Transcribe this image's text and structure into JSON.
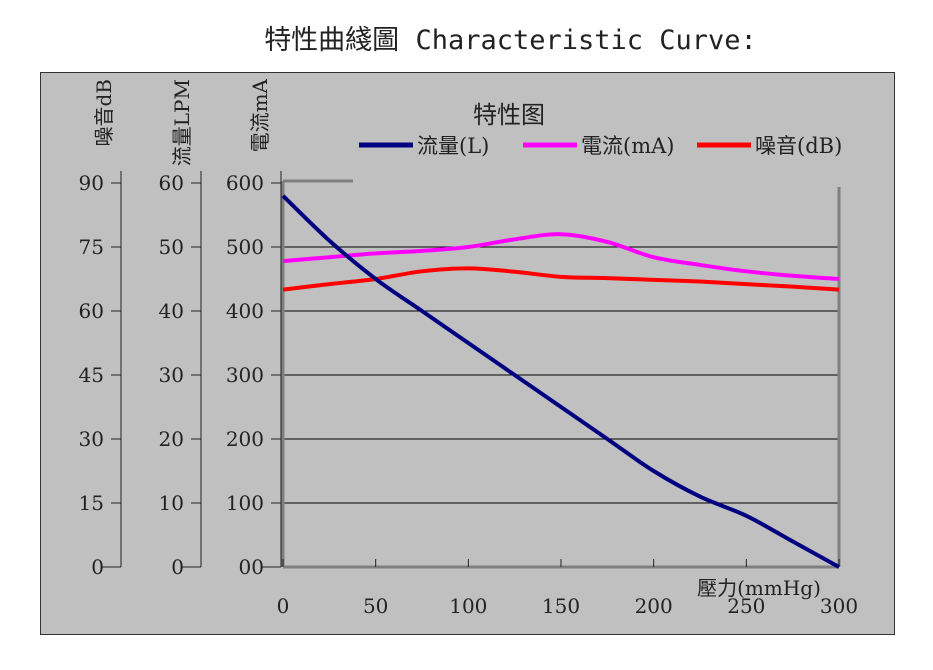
{
  "page_title": "特性曲綫圖 Characteristic Curve:",
  "colors": {
    "background": "#c0c0c0",
    "flow": "#000080",
    "current": "#ff00ff",
    "noise": "#ff0000"
  },
  "chart_data": {
    "type": "line",
    "title": "特性图",
    "xlabel": "壓力(mmHg)",
    "xlim": [
      0,
      300
    ],
    "x_ticks": [
      "0",
      "50",
      "100",
      "150",
      "200",
      "250",
      "300"
    ],
    "grid": true,
    "legend_placement": "top",
    "axes": [
      {
        "id": "noise",
        "label": "噪音dB",
        "range": [
          0,
          90
        ],
        "ticks": [
          "0",
          "15",
          "30",
          "45",
          "60",
          "75",
          "90"
        ]
      },
      {
        "id": "flow",
        "label": "流量LPM",
        "range": [
          0,
          60
        ],
        "ticks": [
          "0",
          "10",
          "20",
          "30",
          "40",
          "50",
          "60"
        ]
      },
      {
        "id": "current",
        "label": "電流mA",
        "range": [
          0,
          600
        ],
        "ticks": [
          "00",
          "100",
          "200",
          "300",
          "400",
          "500",
          "600"
        ]
      }
    ],
    "series": [
      {
        "name": "流量(L)",
        "axis": "flow",
        "color": "#000080",
        "x": [
          0,
          25,
          50,
          75,
          100,
          125,
          150,
          175,
          200,
          225,
          250,
          275,
          300
        ],
        "y": [
          58,
          51,
          45,
          40,
          35,
          30,
          25,
          20,
          15,
          11,
          8,
          4,
          0
        ]
      },
      {
        "name": "電流(mA)",
        "axis": "current",
        "color": "#ff00ff",
        "x": [
          0,
          25,
          50,
          75,
          100,
          125,
          150,
          175,
          200,
          225,
          250,
          275,
          300
        ],
        "y": [
          478,
          484,
          490,
          494,
          500,
          512,
          520,
          508,
          484,
          472,
          462,
          455,
          450
        ]
      },
      {
        "name": "噪音(dB)",
        "axis": "noise",
        "color": "#ff0000",
        "x": [
          0,
          25,
          50,
          75,
          100,
          125,
          150,
          175,
          200,
          225,
          250,
          275,
          300
        ],
        "y": [
          65,
          66.3,
          67.5,
          69.3,
          70,
          69.2,
          68,
          67.7,
          67.3,
          66.9,
          66.3,
          65.7,
          65
        ]
      }
    ]
  }
}
